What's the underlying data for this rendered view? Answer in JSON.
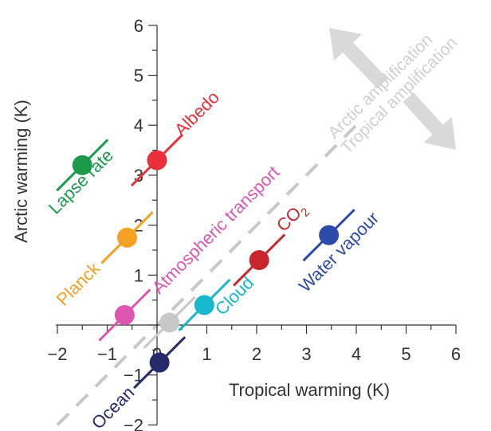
{
  "chart_data": {
    "type": "scatter",
    "xlabel": "Tropical warming (K)",
    "ylabel": "Arctic warming (K)",
    "xlim": [
      -2,
      6
    ],
    "ylim": [
      -2,
      6
    ],
    "xticks": [
      "−2",
      "−1",
      "0",
      "1",
      "2",
      "3",
      "4",
      "5",
      "6"
    ],
    "yticks": [
      "−2",
      "−1",
      "1",
      "2",
      "3",
      "4",
      "5",
      "6"
    ],
    "reference_line": "1:1 diagonal (dashed grey)",
    "annotations": {
      "arctic": "Arctic amplification",
      "tropical": "Tropical amplification"
    },
    "points": [
      {
        "label": "Lapse rate",
        "x": -1.5,
        "y": 3.2,
        "color": "#1a9a4a"
      },
      {
        "label": "Albedo",
        "x": 0.0,
        "y": 3.3,
        "color": "#e8303a"
      },
      {
        "label": "Planck",
        "x": -0.6,
        "y": 1.75,
        "color": "#f4a024"
      },
      {
        "label": "Atmospheric transport",
        "x": -0.65,
        "y": 0.2,
        "color": "#dc56b0"
      },
      {
        "label": "",
        "x": 0.25,
        "y": 0.05,
        "color": "#c8c8c8"
      },
      {
        "label": "Cloud",
        "x": 0.95,
        "y": 0.4,
        "color": "#18b8cc"
      },
      {
        "label": "CO",
        "sub": "2",
        "x": 2.05,
        "y": 1.3,
        "color": "#c8262c"
      },
      {
        "label": "Water vapour",
        "x": 3.45,
        "y": 1.8,
        "color": "#2e4aa8"
      },
      {
        "label": "Ocean",
        "x": 0.05,
        "y": -0.75,
        "color": "#242a6a"
      }
    ]
  }
}
